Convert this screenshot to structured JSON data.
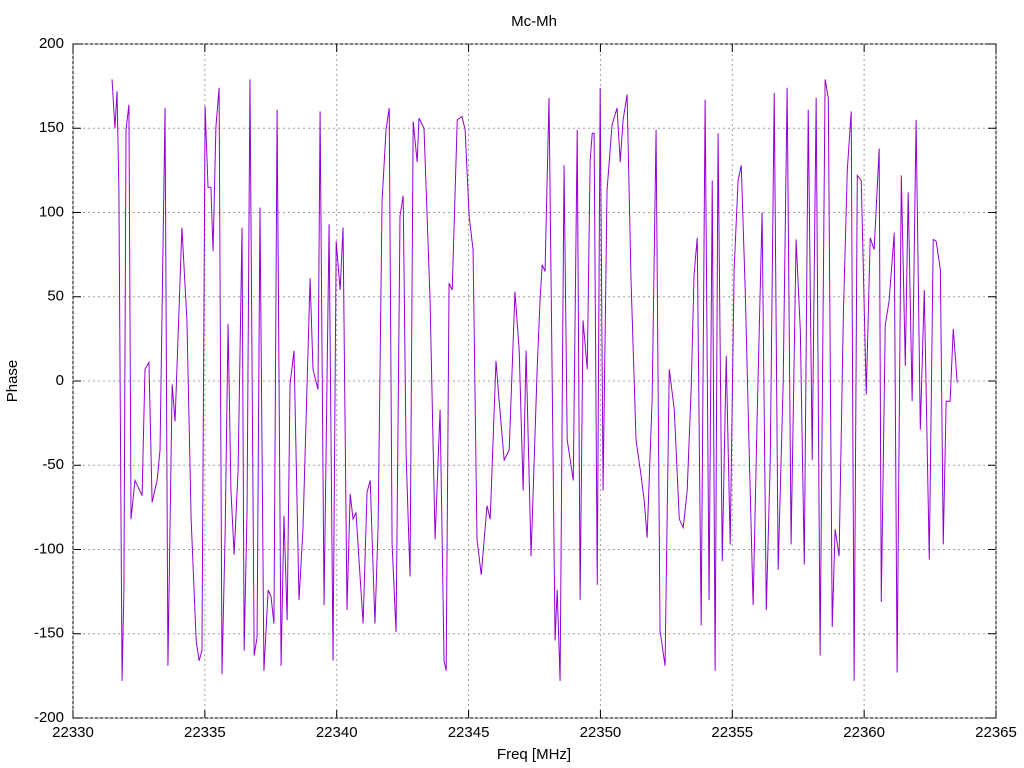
{
  "chart_data": {
    "type": "line",
    "title": "Mc-Mh",
    "x_label": "Freq [MHz]",
    "y_label": "Phase",
    "color": "#9400d3",
    "grid": true,
    "xlim": [
      22330,
      22365
    ],
    "xticks": [
      22330,
      22335,
      22340,
      22345,
      22350,
      22355,
      22360,
      22365
    ],
    "ylim": [
      -200,
      200
    ],
    "yticks": [
      -200,
      -150,
      -100,
      -50,
      0,
      50,
      100,
      150,
      200
    ],
    "x": [
      22331.48,
      22331.59,
      22331.67,
      22331.74,
      22331.86,
      22331.93,
      22332.01,
      22332.12,
      22332.2,
      22332.35,
      22332.62,
      22332.73,
      22332.88,
      22333.0,
      22333.19,
      22333.3,
      22333.49,
      22333.6,
      22333.76,
      22333.87,
      22334.13,
      22334.32,
      22334.48,
      22334.67,
      22334.78,
      22334.89,
      22335.01,
      22335.12,
      22335.23,
      22335.31,
      22335.42,
      22335.54,
      22335.65,
      22335.77,
      22335.88,
      22335.99,
      22336.11,
      22336.26,
      22336.41,
      22336.49,
      22336.6,
      22336.71,
      22336.87,
      22336.98,
      22337.09,
      22337.24,
      22337.4,
      22337.51,
      22337.62,
      22337.74,
      22337.89,
      22338.0,
      22338.12,
      22338.23,
      22338.38,
      22338.57,
      22338.72,
      22338.99,
      22339.1,
      22339.29,
      22339.37,
      22339.52,
      22339.71,
      22339.86,
      22339.98,
      22340.13,
      22340.24,
      22340.39,
      22340.51,
      22340.62,
      22340.73,
      22341.0,
      22341.15,
      22341.27,
      22341.45,
      22341.57,
      22341.72,
      22341.87,
      22341.99,
      22342.1,
      22342.25,
      22342.4,
      22342.52,
      22342.63,
      22342.78,
      22342.9,
      22343.05,
      22343.12,
      22343.31,
      22343.54,
      22343.73,
      22343.92,
      22344.07,
      22344.15,
      22344.26,
      22344.38,
      22344.57,
      22344.75,
      22344.87,
      22345.02,
      22345.17,
      22345.32,
      22345.48,
      22345.7,
      22345.82,
      22346.04,
      22346.16,
      22346.35,
      22346.54,
      22346.76,
      22346.92,
      22347.07,
      22347.18,
      22347.37,
      22347.6,
      22347.71,
      22347.79,
      22347.9,
      22348.05,
      22348.17,
      22348.28,
      22348.36,
      22348.47,
      22348.62,
      22348.74,
      22348.97,
      22349.12,
      22349.23,
      22349.34,
      22349.5,
      22349.61,
      22349.69,
      22349.76,
      22349.88,
      22349.99,
      22350.1,
      22350.25,
      22350.44,
      22350.63,
      22350.75,
      22350.86,
      22351.01,
      22351.16,
      22351.35,
      22351.54,
      22351.66,
      22351.77,
      22351.96,
      22352.11,
      22352.26,
      22352.45,
      22352.61,
      22352.8,
      22352.99,
      22353.14,
      22353.29,
      22353.44,
      22353.55,
      22353.67,
      22353.82,
      22353.97,
      22354.12,
      22354.24,
      22354.35,
      22354.46,
      22354.62,
      22354.77,
      22354.92,
      22355.07,
      22355.22,
      22355.34,
      22355.49,
      22355.64,
      22355.79,
      22355.94,
      22356.13,
      22356.29,
      22356.44,
      22356.59,
      22356.74,
      22356.93,
      22357.08,
      22357.23,
      22357.42,
      22357.58,
      22357.73,
      22357.88,
      22358.03,
      22358.18,
      22358.33,
      22358.52,
      22358.64,
      22358.79,
      22358.9,
      22359.05,
      22359.21,
      22359.36,
      22359.51,
      22359.62,
      22359.74,
      22359.89,
      22360.08,
      22360.23,
      22360.38,
      22360.57,
      22360.65,
      22360.8,
      22360.95,
      22361.14,
      22361.25,
      22361.41,
      22361.56,
      22361.67,
      22361.82,
      22361.97,
      22362.13,
      22362.28,
      22362.47,
      22362.62,
      22362.73,
      22362.89,
      22363.0,
      22363.11,
      22363.26,
      22363.38,
      22363.53
    ],
    "values": [
      179,
      150,
      172,
      113,
      -178,
      -124,
      149,
      164,
      -82,
      -59,
      -68,
      7,
      11,
      -72,
      -59,
      -41,
      162,
      -169,
      -2,
      -24,
      91,
      36,
      -82,
      -154,
      -166,
      -160,
      163,
      115,
      115,
      77,
      151,
      174,
      -174,
      -90,
      34,
      -65,
      -103,
      -53,
      91,
      -160,
      -77,
      179,
      -163,
      -152,
      103,
      -172,
      -124,
      -128,
      -144,
      161,
      -169,
      -80,
      -142,
      -2,
      18,
      -130,
      -88,
      61,
      7,
      -5,
      160,
      -133,
      93,
      -166,
      83,
      54,
      91,
      -136,
      -67,
      -82,
      -78,
      -144,
      -66,
      -59,
      -144,
      -86,
      107,
      149,
      162,
      -97,
      -149,
      98,
      110,
      -43,
      -116,
      154,
      130,
      156,
      150,
      48,
      -94,
      -17,
      -166,
      -172,
      58,
      54,
      155,
      157,
      149,
      98,
      78,
      -94,
      -115,
      -74,
      -82,
      12,
      -12,
      -47,
      -41,
      53,
      18,
      -65,
      18,
      -104,
      7,
      48,
      69,
      65,
      168,
      1,
      -154,
      -124,
      -178,
      128,
      -35,
      -59,
      149,
      -130,
      36,
      7,
      131,
      147,
      147,
      -121,
      174,
      -65,
      113,
      152,
      162,
      130,
      155,
      170,
      60,
      -35,
      -56,
      -71,
      -93,
      -11,
      149,
      -148,
      -169,
      7,
      -17,
      -82,
      -87,
      -65,
      -5,
      63,
      85,
      -145,
      167,
      -130,
      119,
      -172,
      147,
      -107,
      15,
      -97,
      66,
      119,
      128,
      54,
      -41,
      -133,
      -23,
      100,
      -136,
      -47,
      171,
      -112,
      -1,
      174,
      -97,
      84,
      30,
      -109,
      161,
      -47,
      168,
      -163,
      179,
      168,
      -146,
      -88,
      -104,
      38,
      125,
      160,
      -178,
      122,
      119,
      -8,
      85,
      78,
      138,
      -131,
      33,
      48,
      88,
      -173,
      122,
      9,
      112,
      -12,
      155,
      -29,
      54,
      -106,
      84,
      83,
      66,
      -97,
      -12,
      -12,
      31,
      -1
    ]
  }
}
